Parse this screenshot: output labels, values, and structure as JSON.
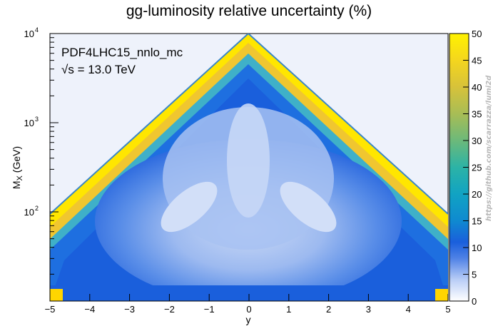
{
  "chart_data": {
    "type": "heatmap",
    "title": "gg-luminosity relative uncertainty (%)",
    "xlabel": "y",
    "ylabel": "M_X (GeV)",
    "xlim": [
      -5,
      5
    ],
    "ylim": [
      10,
      10000
    ],
    "yscale": "log",
    "x_ticks": [
      "−5",
      "−4",
      "−3",
      "−2",
      "−1",
      "0",
      "1",
      "2",
      "3",
      "4",
      "5"
    ],
    "y_ticks": [
      "10",
      "10",
      "10"
    ],
    "y_tick_exponents": [
      "2",
      "3",
      "4"
    ],
    "colorbar": {
      "min": 0,
      "max": 50,
      "ticks": [
        "0",
        "5",
        "10",
        "15",
        "20",
        "25",
        "30",
        "35",
        "40",
        "45",
        "50"
      ]
    },
    "annotations": {
      "pdf_set": "PDF4LHC15_nnlo_mc",
      "sqrt_s": "s = 13.0 TeV"
    },
    "colors": {
      "low": "#e8eefb",
      "mid": "#1a5fdc",
      "high": "#fff200",
      "background": "#eef2fb"
    }
  },
  "watermark": "https://github.com/scarrazza/lumi2d"
}
